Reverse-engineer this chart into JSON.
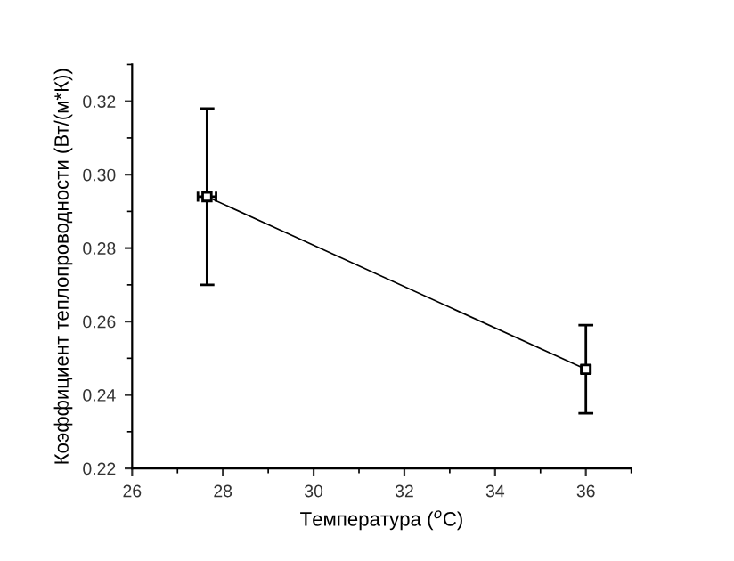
{
  "chart_data": {
    "type": "line",
    "xlabel": "Температура ($^{o}$C)",
    "ylabel": "Коэффициент теплопроводности (Вт/(м*К))",
    "x": [
      27.65,
      36.0
    ],
    "series": [
      {
        "color": "#000000",
        "values": [
          0.294,
          0.247
        ],
        "errors": [
          [
            0.27,
            0.318
          ],
          [
            0.235,
            0.259
          ]
        ],
        "xerrors": [
          0.2,
          0.1
        ]
      }
    ],
    "xlim": [
      26,
      37
    ],
    "xticks": [
      26,
      28,
      30,
      32,
      34,
      36
    ],
    "ylim": [
      0.22,
      0.33
    ],
    "yticks": [
      0.22,
      0.24,
      0.26,
      0.28,
      {
        "value": 0.3,
        "label": "0.30"
      },
      0.32
    ],
    "marker": "square",
    "line_style": "solid",
    "grid": false,
    "legend": false
  }
}
